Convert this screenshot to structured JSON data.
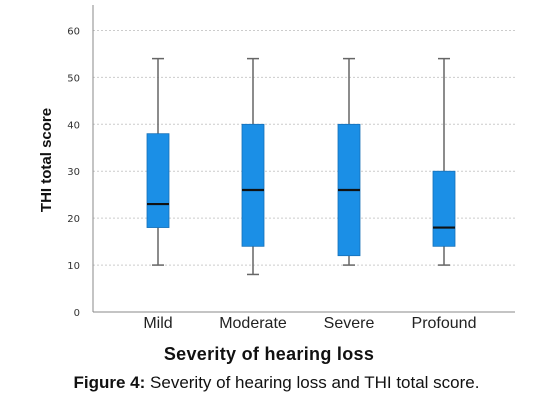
{
  "caption": {
    "label": "Figure 4:",
    "text": " Severity of hearing loss and THI total score."
  },
  "chart_data": {
    "type": "box",
    "ylabel": "THI total score",
    "xlabel": "Severity of hearing loss",
    "ylim": [
      0,
      65
    ],
    "yticks": [
      0,
      10,
      20,
      30,
      40,
      50,
      60
    ],
    "grid": true,
    "categories": [
      "Mild",
      "Moderate",
      "Severe",
      "Profound"
    ],
    "boxes": [
      {
        "category": "Mild",
        "min": 10,
        "q1": 18,
        "median": 23,
        "q3": 38,
        "max": 54
      },
      {
        "category": "Moderate",
        "min": 8,
        "q1": 14,
        "median": 26,
        "q3": 40,
        "max": 54
      },
      {
        "category": "Severe",
        "min": 10,
        "q1": 12,
        "median": 26,
        "q3": 40,
        "max": 54
      },
      {
        "category": "Profound",
        "min": 10,
        "q1": 14,
        "median": 18,
        "q3": 30,
        "max": 54
      }
    ],
    "box_color": "#1b8fe6",
    "median_color": "#111111",
    "whisker_color": "#666666",
    "grid_color": "#cccccc"
  }
}
